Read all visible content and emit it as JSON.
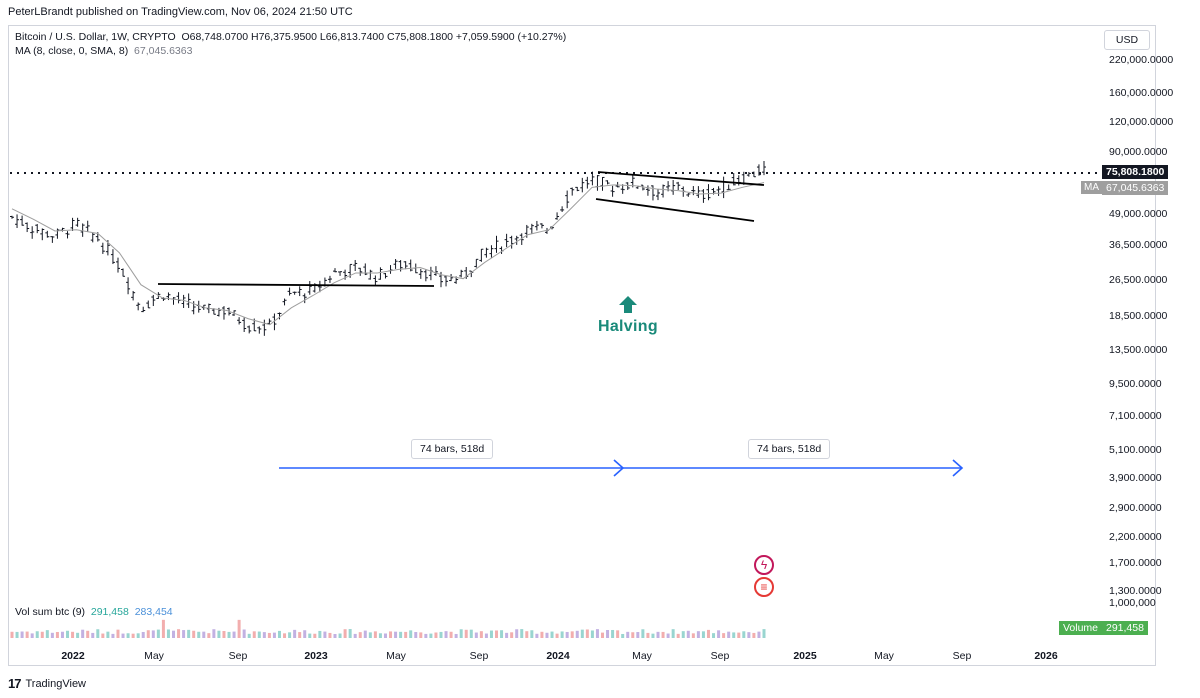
{
  "header": {
    "published_by": "PeterLBrandt published on TradingView.com, Nov 06, 2024 21:50 UTC"
  },
  "legend": {
    "symbol": "Bitcoin / U.S. Dollar, 1W, CRYPTO",
    "ohlc": "O68,748.0700  H76,375.9500  L66,813.7400  C75,808.1800  +7,059.5900 (+10.27%)",
    "ma_label": "MA (8, close, 0, SMA, 8)",
    "ma_value": "67,045.6363",
    "vol_label": "Vol sum btc (9)",
    "vol_value_1": "291,458",
    "vol_value_2": "283,454"
  },
  "price_axis": {
    "currency": "USD",
    "ticks": [
      "220,000.0000",
      "160,000.0000",
      "120,000.0000",
      "90,000.0000",
      "49,000.0000",
      "36,500.0000",
      "26,500.0000",
      "18,500.0000",
      "13,500.0000",
      "9,500.0000",
      "7,100.0000",
      "5,100.0000",
      "3,900.0000",
      "2,900.0000",
      "2,200.0000",
      "1,700.0000",
      "1,300.0000",
      "1,000,000"
    ],
    "last_price": "75,808.1800",
    "ma_tag": "MA",
    "ma_price": "67,045.6363",
    "volume_tag": "Volume",
    "volume_value": "291,458"
  },
  "time_axis": {
    "labels": [
      "2022",
      "May",
      "Sep",
      "2023",
      "May",
      "Sep",
      "2024",
      "May",
      "Sep",
      "2025",
      "May",
      "Sep",
      "2026"
    ]
  },
  "annotations": {
    "halving": "Halving",
    "bars_range_1": "74 bars, 518d",
    "bars_range_2": "74 bars, 518d"
  },
  "footer": {
    "brand": "TradingView"
  },
  "colors": {
    "up_bar": "#131722",
    "ma_line": "#9e9e9e",
    "trendline": "#000000",
    "range_arrow": "#2962ff",
    "halving": "#1a8a7a",
    "volume": "#b39ddb"
  },
  "chart_data": {
    "type": "line",
    "scale": "log",
    "title": "Bitcoin / U.S. Dollar, 1W, CRYPTO",
    "ylim": [
      1000,
      220000
    ],
    "x_range": [
      "2021-12",
      "2026-01"
    ],
    "series": [
      {
        "name": "Bitcoin / U.S. Dollar",
        "x": [
          "2021-12",
          "2022-01",
          "2022-02",
          "2022-03",
          "2022-04",
          "2022-05",
          "2022-06",
          "2022-07",
          "2022-08",
          "2022-09",
          "2022-10",
          "2022-11",
          "2022-12",
          "2023-01",
          "2023-02",
          "2023-03",
          "2023-04",
          "2023-05",
          "2023-06",
          "2023-07",
          "2023-08",
          "2023-09",
          "2023-10",
          "2023-11",
          "2023-12",
          "2024-01",
          "2024-02",
          "2024-03",
          "2024-04",
          "2024-05",
          "2024-06",
          "2024-07",
          "2024-08",
          "2024-09",
          "2024-10",
          "2024-11"
        ],
        "values": [
          48000,
          43000,
          40000,
          45000,
          39000,
          30000,
          20000,
          23000,
          21000,
          19500,
          19500,
          16800,
          16700,
          23000,
          23500,
          28000,
          29500,
          27000,
          30500,
          29200,
          26000,
          27000,
          34500,
          37500,
          42500,
          43000,
          62000,
          69000,
          64000,
          67000,
          61000,
          64000,
          59000,
          63500,
          70000,
          75808
        ]
      },
      {
        "name": "MA",
        "x": [
          "2021-12",
          "2022-01",
          "2022-02",
          "2022-03",
          "2022-04",
          "2022-05",
          "2022-06",
          "2022-07",
          "2022-08",
          "2022-09",
          "2022-10",
          "2022-11",
          "2022-12",
          "2023-01",
          "2023-02",
          "2023-03",
          "2023-04",
          "2023-05",
          "2023-06",
          "2023-07",
          "2023-08",
          "2023-09",
          "2023-10",
          "2023-11",
          "2023-12",
          "2024-01",
          "2024-02",
          "2024-03",
          "2024-04",
          "2024-05",
          "2024-06",
          "2024-07",
          "2024-08",
          "2024-09",
          "2024-10",
          "2024-11"
        ],
        "values": [
          52000,
          47000,
          42000,
          42500,
          41000,
          34000,
          25000,
          22000,
          21500,
          20000,
          19500,
          18000,
          17000,
          20000,
          22500,
          25500,
          28000,
          28000,
          29000,
          29500,
          27500,
          26500,
          31000,
          35500,
          40500,
          42500,
          52000,
          64000,
          65500,
          65000,
          63000,
          62000,
          60000,
          60500,
          64000,
          67045
        ]
      }
    ],
    "volume": {
      "name": "Vol sum btc (9)",
      "last": 291458
    },
    "annotations": [
      {
        "type": "trendline",
        "from": [
          "2022-05",
          26000
        ],
        "to": [
          "2023-07",
          25700
        ]
      },
      {
        "type": "trendline",
        "from": [
          "2024-03",
          73000
        ],
        "to": [
          "2024-10",
          66000
        ]
      },
      {
        "type": "trendline",
        "from": [
          "2024-03",
          57000
        ],
        "to": [
          "2024-10",
          45000
        ]
      },
      {
        "type": "label",
        "at": "2024-04",
        "text": "Halving"
      },
      {
        "type": "range",
        "from": "2022-11",
        "to": "2024-04",
        "text": "74 bars, 518d"
      },
      {
        "type": "range",
        "from": "2024-04",
        "to": "2025-09",
        "text": "74 bars, 518d"
      }
    ]
  }
}
